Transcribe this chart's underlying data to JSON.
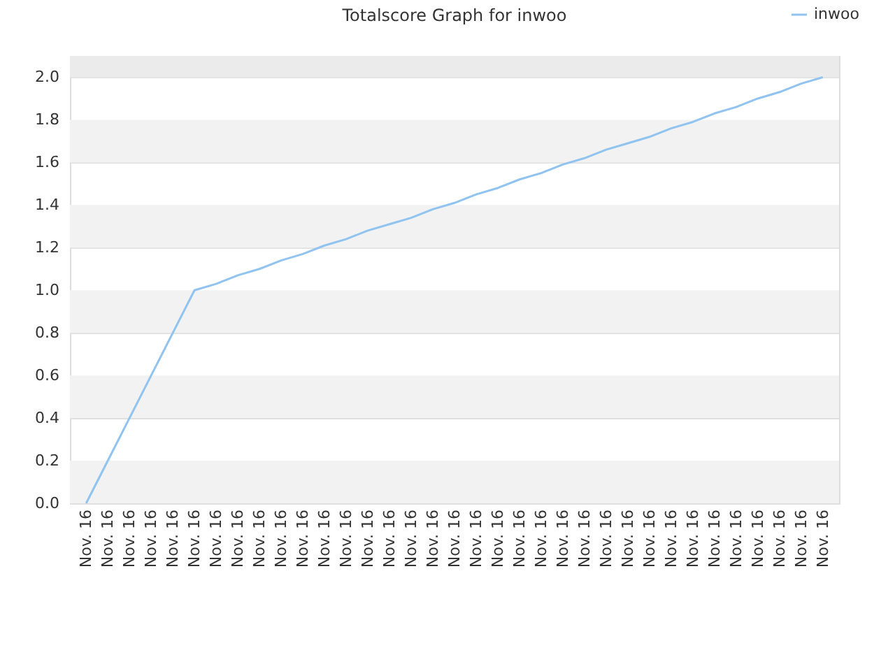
{
  "chart_data": {
    "type": "line",
    "title": "Totalscore Graph for inwoo",
    "categories": [
      "Nov. 16",
      "Nov. 16",
      "Nov. 16",
      "Nov. 16",
      "Nov. 16",
      "Nov. 16",
      "Nov. 16",
      "Nov. 16",
      "Nov. 16",
      "Nov. 16",
      "Nov. 16",
      "Nov. 16",
      "Nov. 16",
      "Nov. 16",
      "Nov. 16",
      "Nov. 16",
      "Nov. 16",
      "Nov. 16",
      "Nov. 16",
      "Nov. 16",
      "Nov. 16",
      "Nov. 16",
      "Nov. 16",
      "Nov. 16",
      "Nov. 16",
      "Nov. 16",
      "Nov. 16",
      "Nov. 16",
      "Nov. 16",
      "Nov. 16",
      "Nov. 16",
      "Nov. 16",
      "Nov. 16",
      "Nov. 16",
      "Nov. 16"
    ],
    "series": [
      {
        "name": "inwoo",
        "color": "#90c3f0",
        "values": [
          0,
          0.2,
          0.4,
          0.6,
          0.8,
          1.0,
          1.03,
          1.07,
          1.1,
          1.14,
          1.17,
          1.21,
          1.24,
          1.28,
          1.31,
          1.34,
          1.38,
          1.41,
          1.45,
          1.48,
          1.52,
          1.55,
          1.59,
          1.62,
          1.66,
          1.69,
          1.72,
          1.76,
          1.79,
          1.83,
          1.86,
          1.9,
          1.93,
          1.97,
          2.0
        ]
      }
    ],
    "ylim": [
      0,
      2.1
    ],
    "yticks": [
      {
        "value": 0,
        "label": "0.0"
      },
      0.2,
      0.4,
      0.6,
      0.8,
      {
        "value": 1,
        "label": "1.0"
      },
      1.2,
      1.4,
      1.6,
      1.8,
      {
        "value": 2,
        "label": "2.0"
      }
    ],
    "bands": [
      {
        "axis": "y",
        "from": 0,
        "to": 0.2,
        "color": "#f2f2f2"
      },
      {
        "axis": "y",
        "from": 0.4,
        "to": 0.6,
        "color": "#f2f2f2"
      },
      {
        "axis": "y",
        "from": 0.8,
        "to": 1.0,
        "color": "#f2f2f2"
      },
      {
        "axis": "y",
        "from": 1.2,
        "to": 1.4,
        "color": "#f2f2f2"
      },
      {
        "axis": "y",
        "from": 1.6,
        "to": 1.8,
        "color": "#f2f2f2"
      },
      {
        "axis": "y",
        "from": 2.0,
        "to": 2.1,
        "color": "#ebebeb"
      }
    ],
    "grid": "y",
    "legend": "top right",
    "marker": "none",
    "line_style": "solid"
  }
}
